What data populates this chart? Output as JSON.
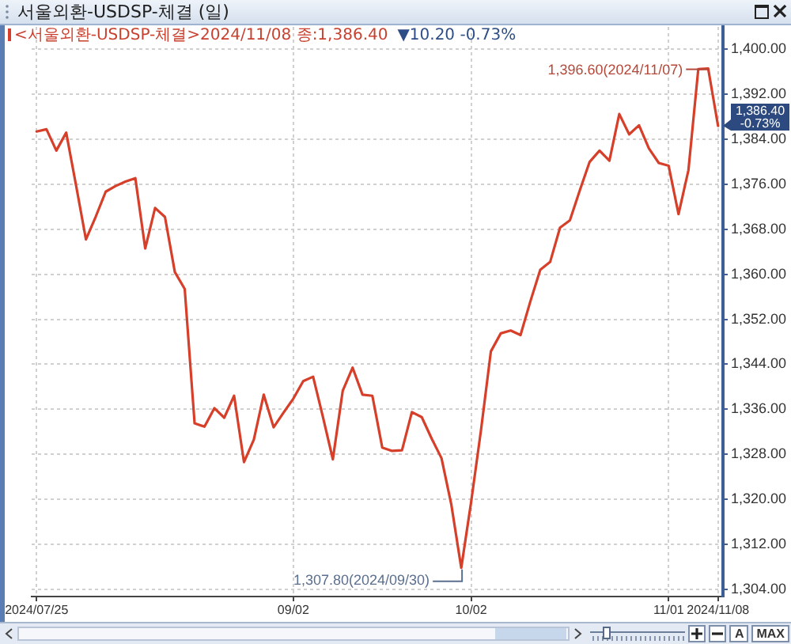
{
  "chart_data": {
    "type": "line",
    "title": "서울외환-USDSP-체결 (일)",
    "subtitle": "<서울외환-USDSP-체결>2024/11/08 종:1,386.40",
    "categories": [
      "2024/07/25",
      null,
      null,
      null,
      null,
      null,
      null,
      null,
      null,
      null,
      null,
      null,
      null,
      null,
      null,
      null,
      null,
      null,
      null,
      null,
      null,
      null,
      null,
      null,
      null,
      null,
      "09/02",
      null,
      null,
      null,
      null,
      null,
      null,
      null,
      null,
      null,
      null,
      null,
      null,
      null,
      null,
      null,
      null,
      null,
      "10/02",
      null,
      null,
      null,
      null,
      null,
      null,
      null,
      null,
      null,
      null,
      null,
      null,
      null,
      null,
      null,
      null,
      null,
      null,
      null,
      "11/01",
      null,
      null,
      null,
      null,
      "2024/11/08"
    ],
    "series": [
      {
        "color": "#d63f2a",
        "values": [
          1385.4,
          1385.8,
          1382.0,
          1385.2,
          1375.8,
          1366.2,
          1370.3,
          1374.7,
          1375.7,
          1376.5,
          1377.1,
          1364.6,
          1371.8,
          1370.2,
          1360.4,
          1357.4,
          1333.5,
          1332.9,
          1336.2,
          1334.5,
          1338.4,
          1326.6,
          1330.6,
          1338.6,
          1332.8,
          1335.4,
          1337.9,
          1341.0,
          1341.8,
          1334.6,
          1327.1,
          1339.3,
          1343.4,
          1338.6,
          1338.4,
          1329.2,
          1328.6,
          1328.7,
          1335.5,
          1334.6,
          1330.8,
          1327.3,
          1319.0,
          1307.8,
          1319.5,
          1332.3,
          1346.3,
          1349.5,
          1350.0,
          1349.2,
          1355.2,
          1360.8,
          1362.2,
          1368.3,
          1369.6,
          1374.9,
          1380.0,
          1382.0,
          1380.2,
          1388.5,
          1384.9,
          1386.5,
          1382.4,
          1379.8,
          1379.3,
          1370.7,
          1378.5,
          1396.5,
          1396.6,
          1386.4
        ]
      }
    ],
    "ylim": [
      1302.7,
      1404
    ],
    "yticks": [
      {
        "value": 1304,
        "label": "1,304.00"
      },
      {
        "value": 1312,
        "label": "1,312.00"
      },
      {
        "value": 1320,
        "label": "1,320.00"
      },
      {
        "value": 1328,
        "label": "1,328.00"
      },
      {
        "value": 1336,
        "label": "1,336.00"
      },
      {
        "value": 1344,
        "label": "1,344.00"
      },
      {
        "value": 1352,
        "label": "1,352.00"
      },
      {
        "value": 1360,
        "label": "1,360.00"
      },
      {
        "value": 1368,
        "label": "1,368.00"
      },
      {
        "value": 1376,
        "label": "1,376.00"
      },
      {
        "value": 1384,
        "label": "1,384.00"
      },
      {
        "value": 1392,
        "label": "1,392.00"
      },
      {
        "value": 1400,
        "label": "1,400.00"
      }
    ],
    "grid": true,
    "marker": "none",
    "annotations": [
      "▼10.20 -0.73%",
      "1,396.60(2024/11/07)",
      "1,307.80(2024/09/30)",
      "1,386.40\n-0.73%",
      "A",
      "MAX"
    ]
  }
}
